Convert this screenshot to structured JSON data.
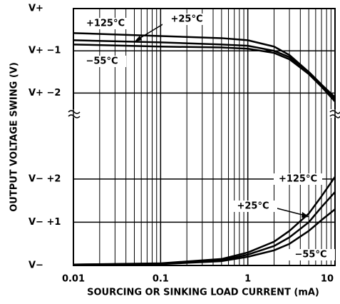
{
  "chart_data": [
    {
      "type": "line",
      "y_label": "OUTPUT VOLTAGE SWING (V)",
      "x": [
        0.01,
        0.1,
        0.5,
        1,
        2,
        3,
        5,
        7,
        10
      ],
      "xscale": "log",
      "xlim": [
        0.01,
        10
      ],
      "ylim": [
        -2.5,
        0
      ],
      "yticks": [
        {
          "value": 0,
          "label": "V+"
        },
        {
          "value": -1,
          "label": "V+ −1"
        },
        {
          "value": -2,
          "label": "V+ −2"
        }
      ],
      "grid": true,
      "series": [
        {
          "name": "+125°C",
          "color": "#000000",
          "values": [
            -0.58,
            -0.65,
            -0.7,
            -0.75,
            -0.9,
            -1.1,
            -1.5,
            -1.8,
            -2.1
          ]
        },
        {
          "name": "+25°C",
          "color": "#000000",
          "values": [
            -0.75,
            -0.8,
            -0.85,
            -0.88,
            -1.0,
            -1.15,
            -1.5,
            -1.8,
            -2.15
          ]
        },
        {
          "name": "−55°C",
          "color": "#000000",
          "values": [
            -0.85,
            -0.9,
            -0.92,
            -0.95,
            -1.05,
            -1.2,
            -1.55,
            -1.85,
            -2.2
          ]
        }
      ]
    },
    {
      "type": "line",
      "x_label": "SOURCING OR SINKING LOAD CURRENT (mA)",
      "x": [
        0.01,
        0.1,
        0.5,
        1,
        2,
        3,
        5,
        7,
        10
      ],
      "xscale": "log",
      "xlim": [
        0.01,
        10
      ],
      "xticks": [
        0.01,
        0.1,
        1,
        10
      ],
      "ylim": [
        0,
        3.5
      ],
      "yticks": [
        {
          "value": 0,
          "label": "V−"
        },
        {
          "value": 1,
          "label": "V− +1"
        },
        {
          "value": 2,
          "label": "V− +2"
        }
      ],
      "grid": true,
      "series": [
        {
          "name": "+125°C",
          "color": "#000000",
          "values": [
            0.02,
            0.05,
            0.15,
            0.3,
            0.55,
            0.8,
            1.2,
            1.6,
            2.05
          ]
        },
        {
          "name": "+25°C",
          "color": "#000000",
          "values": [
            0.02,
            0.04,
            0.12,
            0.25,
            0.45,
            0.65,
            1.0,
            1.35,
            1.7
          ]
        },
        {
          "name": "−55°C",
          "color": "#000000",
          "values": [
            0.02,
            0.03,
            0.1,
            0.2,
            0.35,
            0.5,
            0.8,
            1.05,
            1.3
          ]
        }
      ]
    }
  ]
}
